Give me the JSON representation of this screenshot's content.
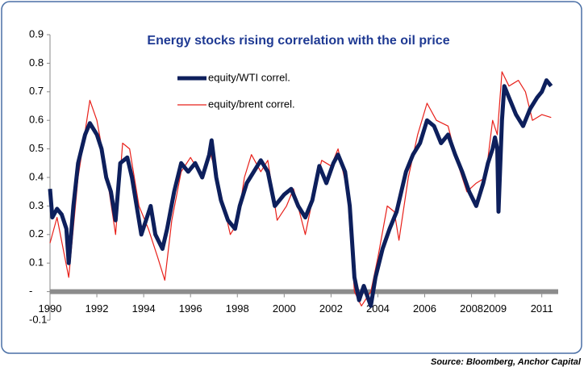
{
  "chart_data": {
    "type": "line",
    "title": "Energy stocks rising correlation with the oil price",
    "source": "Source: Bloomberg, Anchor Capital",
    "xlim": [
      1990,
      2011.7
    ],
    "xticks": [
      1990,
      1992,
      1994,
      1996,
      1998,
      2000,
      2002,
      2004,
      2006,
      2008,
      2009,
      2011
    ],
    "ylim": [
      -0.1,
      0.9
    ],
    "yticks": [
      -0.1,
      {
        "value": 0,
        "label": "-"
      },
      0.1,
      0.2,
      0.3,
      0.4,
      0.5,
      0.6,
      0.7,
      0.8,
      0.9
    ],
    "series": [
      {
        "name": "equity/WTI correl.",
        "color": "#0d1f5c",
        "x": [
          1990.0,
          1990.1,
          1990.3,
          1990.5,
          1990.7,
          1990.8,
          1991.0,
          1991.2,
          1991.5,
          1991.7,
          1992.0,
          1992.2,
          1992.4,
          1992.6,
          1992.8,
          1993.0,
          1993.3,
          1993.5,
          1993.7,
          1993.9,
          1994.1,
          1994.3,
          1994.5,
          1994.8,
          1995.0,
          1995.3,
          1995.6,
          1995.9,
          1996.2,
          1996.5,
          1996.8,
          1996.9,
          1997.1,
          1997.3,
          1997.6,
          1997.9,
          1998.1,
          1998.4,
          1998.7,
          1999.0,
          1999.3,
          1999.6,
          2000.0,
          2000.3,
          2000.6,
          2000.9,
          2001.2,
          2001.5,
          2001.8,
          2002.1,
          2002.3,
          2002.6,
          2002.8,
          2003.0,
          2003.2,
          2003.4,
          2003.7,
          2003.9,
          2004.2,
          2004.5,
          2004.8,
          2005.2,
          2005.5,
          2005.8,
          2006.1,
          2006.4,
          2006.7,
          2007.0,
          2007.3,
          2007.6,
          2007.9,
          2008.2,
          2008.5,
          2008.7,
          2008.9,
          2009.0,
          2009.1,
          2009.15,
          2009.3,
          2009.4,
          2009.6,
          2009.9,
          2010.2,
          2010.5,
          2010.8,
          2011.0,
          2011.2,
          2011.4
        ],
        "values": [
          0.36,
          0.26,
          0.29,
          0.27,
          0.22,
          0.1,
          0.3,
          0.45,
          0.55,
          0.59,
          0.55,
          0.5,
          0.4,
          0.35,
          0.25,
          0.45,
          0.47,
          0.4,
          0.3,
          0.2,
          0.25,
          0.3,
          0.2,
          0.15,
          0.22,
          0.35,
          0.45,
          0.42,
          0.45,
          0.4,
          0.48,
          0.53,
          0.4,
          0.32,
          0.25,
          0.22,
          0.3,
          0.38,
          0.42,
          0.46,
          0.42,
          0.3,
          0.34,
          0.36,
          0.3,
          0.26,
          0.32,
          0.44,
          0.38,
          0.45,
          0.48,
          0.42,
          0.3,
          0.05,
          -0.03,
          0.02,
          -0.05,
          0.05,
          0.15,
          0.22,
          0.28,
          0.42,
          0.48,
          0.52,
          0.6,
          0.58,
          0.52,
          0.55,
          0.48,
          0.42,
          0.35,
          0.3,
          0.38,
          0.45,
          0.5,
          0.54,
          0.5,
          0.28,
          0.6,
          0.72,
          0.68,
          0.62,
          0.58,
          0.64,
          0.68,
          0.7,
          0.74,
          0.72
        ]
      },
      {
        "name": "equity/brent correl.",
        "color": "#e8201a",
        "x": [
          1990.0,
          1990.3,
          1990.8,
          1991.2,
          1991.7,
          1992.0,
          1992.4,
          1992.8,
          1993.1,
          1993.4,
          1993.8,
          1994.2,
          1994.6,
          1994.9,
          1995.2,
          1995.6,
          1996.0,
          1996.5,
          1996.8,
          1997.2,
          1997.7,
          1998.0,
          1998.3,
          1998.6,
          1999.0,
          1999.3,
          1999.7,
          2000.1,
          2000.4,
          2000.9,
          2001.3,
          2001.6,
          2002.0,
          2002.3,
          2002.7,
          2003.0,
          2003.3,
          2003.7,
          2004.0,
          2004.4,
          2004.7,
          2004.9,
          2005.3,
          2005.7,
          2006.1,
          2006.5,
          2007.0,
          2007.4,
          2007.8,
          2008.2,
          2008.6,
          2008.9,
          2009.1,
          2009.3,
          2009.6,
          2010.0,
          2010.3,
          2010.6,
          2011.0,
          2011.4
        ],
        "values": [
          0.17,
          0.26,
          0.05,
          0.4,
          0.67,
          0.6,
          0.42,
          0.2,
          0.52,
          0.5,
          0.3,
          0.22,
          0.12,
          0.04,
          0.25,
          0.42,
          0.47,
          0.4,
          0.5,
          0.38,
          0.2,
          0.24,
          0.4,
          0.48,
          0.42,
          0.46,
          0.25,
          0.3,
          0.36,
          0.2,
          0.36,
          0.46,
          0.44,
          0.5,
          0.35,
          0.0,
          -0.05,
          0.0,
          0.12,
          0.3,
          0.28,
          0.18,
          0.4,
          0.55,
          0.66,
          0.6,
          0.58,
          0.45,
          0.35,
          0.38,
          0.4,
          0.6,
          0.55,
          0.77,
          0.72,
          0.74,
          0.7,
          0.6,
          0.62,
          0.61
        ]
      }
    ]
  }
}
